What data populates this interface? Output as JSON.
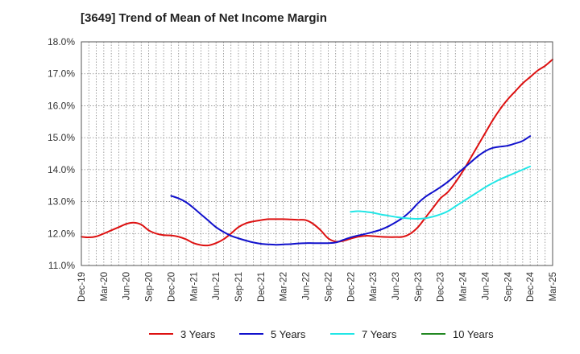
{
  "title": "[3649]  Trend of Mean of Net Income Margin",
  "chart_data": {
    "type": "line",
    "title": "[3649]  Trend of Mean of Net Income Margin",
    "xlabel": "",
    "ylabel": "",
    "ylim": [
      11.0,
      18.0
    ],
    "y_ticks": [
      "11.0%",
      "12.0%",
      "13.0%",
      "14.0%",
      "15.0%",
      "16.0%",
      "17.0%",
      "18.0%"
    ],
    "x_ticks": [
      "Dec-19",
      "Mar-20",
      "Jun-20",
      "Sep-20",
      "Dec-20",
      "Mar-21",
      "Jun-21",
      "Sep-21",
      "Dec-21",
      "Mar-22",
      "Jun-22",
      "Sep-22",
      "Dec-22",
      "Mar-23",
      "Jun-23",
      "Sep-23",
      "Dec-23",
      "Mar-24",
      "Jun-24",
      "Sep-24",
      "Dec-24",
      "Mar-25"
    ],
    "grid": true,
    "legend_position": "bottom",
    "months": [
      "Dec-19",
      "Jan-20",
      "Feb-20",
      "Mar-20",
      "Apr-20",
      "May-20",
      "Jun-20",
      "Jul-20",
      "Aug-20",
      "Sep-20",
      "Oct-20",
      "Nov-20",
      "Dec-20",
      "Jan-21",
      "Feb-21",
      "Mar-21",
      "Apr-21",
      "May-21",
      "Jun-21",
      "Jul-21",
      "Aug-21",
      "Sep-21",
      "Oct-21",
      "Nov-21",
      "Dec-21",
      "Jan-22",
      "Feb-22",
      "Mar-22",
      "Apr-22",
      "May-22",
      "Jun-22",
      "Jul-22",
      "Aug-22",
      "Sep-22",
      "Oct-22",
      "Nov-22",
      "Dec-22",
      "Jan-23",
      "Feb-23",
      "Mar-23",
      "Apr-23",
      "May-23",
      "Jun-23",
      "Jul-23",
      "Aug-23",
      "Sep-23",
      "Oct-23",
      "Nov-23",
      "Dec-23",
      "Jan-24",
      "Feb-24",
      "Mar-24",
      "Apr-24",
      "May-24",
      "Jun-24",
      "Jul-24",
      "Aug-24",
      "Sep-24",
      "Oct-24",
      "Nov-24",
      "Dec-24",
      "Jan-25",
      "Feb-25",
      "Mar-25"
    ],
    "series": [
      {
        "name": "3 Years",
        "color": "#dd1111",
        "values": [
          11.9,
          11.88,
          11.91,
          12.0,
          12.1,
          12.2,
          12.3,
          12.34,
          12.28,
          12.1,
          12.0,
          11.95,
          11.94,
          11.9,
          11.82,
          11.7,
          11.64,
          11.63,
          11.7,
          11.82,
          12.0,
          12.2,
          12.32,
          12.38,
          12.42,
          12.45,
          12.45,
          12.45,
          12.44,
          12.43,
          12.42,
          12.3,
          12.1,
          11.85,
          11.75,
          11.77,
          11.84,
          11.9,
          11.93,
          11.92,
          11.9,
          11.89,
          11.89,
          11.9,
          12.0,
          12.2,
          12.5,
          12.8,
          13.1,
          13.3,
          13.6,
          13.95,
          14.35,
          14.75,
          15.15,
          15.55,
          15.9,
          16.2,
          16.45,
          16.7,
          16.9,
          17.1,
          17.25,
          17.45
        ]
      },
      {
        "name": "5 Years",
        "color": "#1111cc",
        "values": [
          null,
          null,
          null,
          null,
          null,
          null,
          null,
          null,
          null,
          null,
          null,
          null,
          13.18,
          13.1,
          12.98,
          12.8,
          12.6,
          12.4,
          12.2,
          12.05,
          11.93,
          11.85,
          11.78,
          11.72,
          11.68,
          11.66,
          11.65,
          11.66,
          11.67,
          11.69,
          11.7,
          11.7,
          11.7,
          11.7,
          11.72,
          11.8,
          11.88,
          11.94,
          11.99,
          12.05,
          12.12,
          12.22,
          12.35,
          12.5,
          12.7,
          12.95,
          13.15,
          13.3,
          13.45,
          13.62,
          13.82,
          14.02,
          14.22,
          14.42,
          14.58,
          14.68,
          14.72,
          14.75,
          14.82,
          14.9,
          15.05,
          null,
          null,
          null
        ]
      },
      {
        "name": "7 Years",
        "color": "#22e6e6",
        "values": [
          null,
          null,
          null,
          null,
          null,
          null,
          null,
          null,
          null,
          null,
          null,
          null,
          null,
          null,
          null,
          null,
          null,
          null,
          null,
          null,
          null,
          null,
          null,
          null,
          null,
          null,
          null,
          null,
          null,
          null,
          null,
          null,
          null,
          null,
          null,
          null,
          12.68,
          12.7,
          12.68,
          12.65,
          12.6,
          12.56,
          12.52,
          12.49,
          12.47,
          12.46,
          12.48,
          12.53,
          12.6,
          12.7,
          12.85,
          13.0,
          13.15,
          13.3,
          13.45,
          13.58,
          13.7,
          13.8,
          13.9,
          14.0,
          14.1,
          null,
          null,
          null
        ]
      },
      {
        "name": "10 Years",
        "color": "#228822",
        "values": []
      }
    ]
  }
}
